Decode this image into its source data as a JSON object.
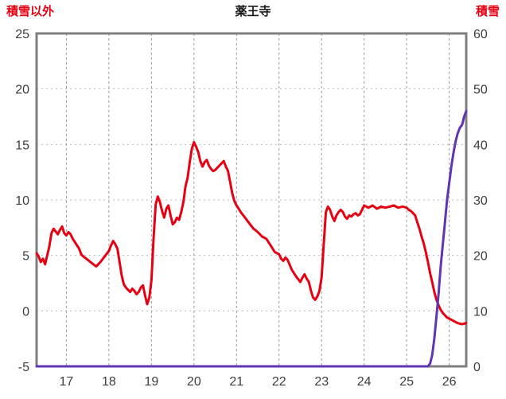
{
  "header": {
    "left_axis_label": "積雪以外",
    "title": "薬王寺",
    "right_axis_label": "積雪"
  },
  "chart_data": {
    "type": "line",
    "title": "薬王寺",
    "x_range": [
      16.3,
      26.4
    ],
    "x_axis": {
      "ticks": [
        17,
        18,
        19,
        20,
        21,
        22,
        23,
        24,
        25,
        26
      ]
    },
    "left_axis": {
      "label": "積雪以外",
      "label_color": "#e60012",
      "range": [
        -5,
        25
      ],
      "ticks": [
        -5,
        0,
        5,
        10,
        15,
        20,
        25
      ]
    },
    "right_axis": {
      "label": "積雪",
      "label_color": "#e60012",
      "range": [
        0,
        60
      ],
      "ticks": [
        0,
        10,
        20,
        30,
        40,
        50,
        60
      ]
    },
    "grid": {
      "vertical": true,
      "horizontal": true,
      "grid_color": "#9a9a9a",
      "hgrid_color": "#b8b8b8"
    },
    "border_color": "#7f7f7f",
    "tick_label_color": "#3d3d3d",
    "series": [
      {
        "name": "積雪以外",
        "axis": "left",
        "color": "#e60012",
        "points": [
          [
            16.3,
            5.2
          ],
          [
            16.35,
            4.9
          ],
          [
            16.4,
            4.4
          ],
          [
            16.45,
            4.7
          ],
          [
            16.5,
            4.2
          ],
          [
            16.6,
            5.8
          ],
          [
            16.65,
            7.0
          ],
          [
            16.7,
            7.4
          ],
          [
            16.8,
            6.9
          ],
          [
            16.85,
            7.3
          ],
          [
            16.9,
            7.6
          ],
          [
            16.95,
            7.0
          ],
          [
            17.0,
            6.8
          ],
          [
            17.05,
            7.1
          ],
          [
            17.1,
            6.9
          ],
          [
            17.15,
            6.5
          ],
          [
            17.2,
            6.2
          ],
          [
            17.3,
            5.6
          ],
          [
            17.35,
            5.1
          ],
          [
            17.4,
            4.9
          ],
          [
            17.5,
            4.6
          ],
          [
            17.6,
            4.3
          ],
          [
            17.7,
            4.0
          ],
          [
            17.75,
            4.2
          ],
          [
            17.8,
            4.4
          ],
          [
            17.9,
            4.9
          ],
          [
            18.0,
            5.4
          ],
          [
            18.05,
            5.9
          ],
          [
            18.1,
            6.3
          ],
          [
            18.15,
            6.0
          ],
          [
            18.2,
            5.6
          ],
          [
            18.25,
            4.4
          ],
          [
            18.3,
            3.2
          ],
          [
            18.35,
            2.4
          ],
          [
            18.4,
            2.1
          ],
          [
            18.45,
            1.9
          ],
          [
            18.5,
            1.7
          ],
          [
            18.55,
            2.0
          ],
          [
            18.6,
            1.8
          ],
          [
            18.65,
            1.5
          ],
          [
            18.7,
            1.7
          ],
          [
            18.75,
            2.1
          ],
          [
            18.8,
            2.3
          ],
          [
            18.85,
            1.4
          ],
          [
            18.9,
            0.6
          ],
          [
            18.95,
            1.2
          ],
          [
            19.0,
            2.8
          ],
          [
            19.05,
            6.5
          ],
          [
            19.1,
            9.6
          ],
          [
            19.15,
            10.3
          ],
          [
            19.2,
            9.8
          ],
          [
            19.25,
            9.0
          ],
          [
            19.3,
            8.4
          ],
          [
            19.35,
            9.2
          ],
          [
            19.4,
            9.5
          ],
          [
            19.45,
            8.6
          ],
          [
            19.5,
            7.8
          ],
          [
            19.55,
            8.0
          ],
          [
            19.6,
            8.4
          ],
          [
            19.65,
            8.2
          ],
          [
            19.7,
            8.9
          ],
          [
            19.75,
            9.8
          ],
          [
            19.8,
            11.2
          ],
          [
            19.85,
            12.0
          ],
          [
            19.9,
            13.4
          ],
          [
            19.95,
            14.6
          ],
          [
            20.0,
            15.2
          ],
          [
            20.05,
            14.8
          ],
          [
            20.1,
            14.3
          ],
          [
            20.15,
            13.5
          ],
          [
            20.2,
            13.0
          ],
          [
            20.25,
            13.4
          ],
          [
            20.3,
            13.6
          ],
          [
            20.35,
            13.1
          ],
          [
            20.4,
            12.8
          ],
          [
            20.45,
            12.6
          ],
          [
            20.5,
            12.7
          ],
          [
            20.55,
            12.9
          ],
          [
            20.6,
            13.1
          ],
          [
            20.65,
            13.3
          ],
          [
            20.7,
            13.5
          ],
          [
            20.75,
            13.0
          ],
          [
            20.8,
            12.6
          ],
          [
            20.85,
            11.6
          ],
          [
            20.9,
            10.6
          ],
          [
            20.95,
            9.9
          ],
          [
            21.0,
            9.5
          ],
          [
            21.05,
            9.2
          ],
          [
            21.1,
            8.9
          ],
          [
            21.2,
            8.4
          ],
          [
            21.3,
            7.9
          ],
          [
            21.4,
            7.4
          ],
          [
            21.5,
            7.1
          ],
          [
            21.6,
            6.7
          ],
          [
            21.7,
            6.5
          ],
          [
            21.8,
            5.9
          ],
          [
            21.9,
            5.3
          ],
          [
            22.0,
            5.1
          ],
          [
            22.05,
            4.7
          ],
          [
            22.1,
            4.5
          ],
          [
            22.15,
            4.8
          ],
          [
            22.2,
            4.6
          ],
          [
            22.3,
            3.7
          ],
          [
            22.4,
            3.1
          ],
          [
            22.5,
            2.6
          ],
          [
            22.55,
            3.0
          ],
          [
            22.6,
            3.3
          ],
          [
            22.65,
            2.9
          ],
          [
            22.7,
            2.6
          ],
          [
            22.75,
            1.8
          ],
          [
            22.8,
            1.2
          ],
          [
            22.85,
            1.0
          ],
          [
            22.9,
            1.3
          ],
          [
            22.95,
            1.8
          ],
          [
            23.0,
            3.0
          ],
          [
            23.05,
            6.0
          ],
          [
            23.1,
            8.9
          ],
          [
            23.15,
            9.4
          ],
          [
            23.2,
            9.1
          ],
          [
            23.25,
            8.5
          ],
          [
            23.3,
            8.1
          ],
          [
            23.35,
            8.6
          ],
          [
            23.4,
            8.9
          ],
          [
            23.45,
            9.1
          ],
          [
            23.5,
            8.9
          ],
          [
            23.55,
            8.5
          ],
          [
            23.6,
            8.3
          ],
          [
            23.65,
            8.6
          ],
          [
            23.7,
            8.5
          ],
          [
            23.75,
            8.7
          ],
          [
            23.8,
            8.8
          ],
          [
            23.85,
            8.6
          ],
          [
            23.9,
            8.7
          ],
          [
            23.95,
            9.1
          ],
          [
            24.0,
            9.5
          ],
          [
            24.1,
            9.3
          ],
          [
            24.2,
            9.5
          ],
          [
            24.3,
            9.2
          ],
          [
            24.4,
            9.4
          ],
          [
            24.5,
            9.3
          ],
          [
            24.6,
            9.4
          ],
          [
            24.7,
            9.5
          ],
          [
            24.8,
            9.3
          ],
          [
            24.9,
            9.4
          ],
          [
            25.0,
            9.3
          ],
          [
            25.05,
            9.1
          ],
          [
            25.1,
            9.0
          ],
          [
            25.15,
            8.8
          ],
          [
            25.2,
            8.6
          ],
          [
            25.25,
            8.0
          ],
          [
            25.3,
            7.4
          ],
          [
            25.35,
            6.7
          ],
          [
            25.4,
            6.1
          ],
          [
            25.45,
            5.3
          ],
          [
            25.5,
            4.4
          ],
          [
            25.55,
            3.4
          ],
          [
            25.6,
            2.6
          ],
          [
            25.65,
            1.7
          ],
          [
            25.7,
            1.0
          ],
          [
            25.75,
            0.5
          ],
          [
            25.8,
            0.1
          ],
          [
            25.85,
            -0.2
          ],
          [
            25.9,
            -0.4
          ],
          [
            25.95,
            -0.6
          ],
          [
            26.0,
            -0.7
          ],
          [
            26.1,
            -0.9
          ],
          [
            26.2,
            -1.1
          ],
          [
            26.3,
            -1.2
          ],
          [
            26.4,
            -1.1
          ]
        ]
      },
      {
        "name": "積雪",
        "axis": "right",
        "color": "#5f35b5",
        "points": [
          [
            16.3,
            0
          ],
          [
            25.5,
            0
          ],
          [
            25.55,
            0.5
          ],
          [
            25.6,
            2
          ],
          [
            25.65,
            5
          ],
          [
            25.7,
            9
          ],
          [
            25.75,
            13
          ],
          [
            25.8,
            18
          ],
          [
            25.85,
            22
          ],
          [
            25.9,
            26
          ],
          [
            25.95,
            30
          ],
          [
            26.0,
            33
          ],
          [
            26.05,
            36
          ],
          [
            26.1,
            38.5
          ],
          [
            26.15,
            40.5
          ],
          [
            26.2,
            42
          ],
          [
            26.25,
            43
          ],
          [
            26.3,
            43.5
          ],
          [
            26.32,
            44
          ],
          [
            26.35,
            45
          ],
          [
            26.4,
            46
          ]
        ]
      }
    ]
  }
}
